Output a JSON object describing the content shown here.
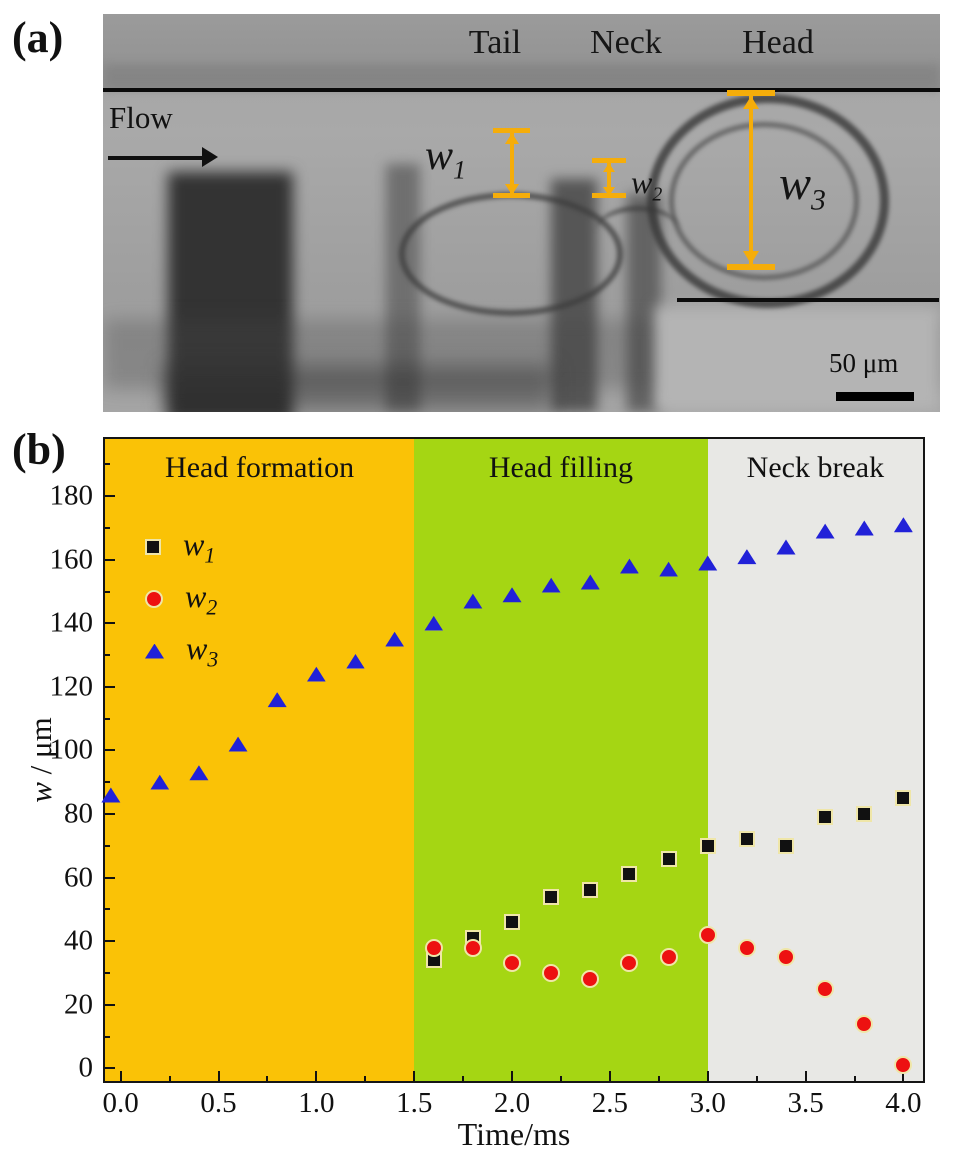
{
  "panel_a": {
    "label": "(a)",
    "region_labels": {
      "tail": "Tail",
      "neck": "Neck",
      "head": "Head"
    },
    "flow_label": "Flow",
    "measurements": [
      {
        "base": "w",
        "sub": "1"
      },
      {
        "base": "w",
        "sub": "2"
      },
      {
        "base": "w",
        "sub": "3"
      }
    ],
    "scale_bar_label": "50 μm",
    "annotation_color": "#F5AD0A"
  },
  "panel_b": {
    "label": "(b)"
  },
  "chart_data": {
    "type": "scatter",
    "title": "",
    "xlabel": "Time/ms",
    "ylabel_italic": "w",
    "ylabel_rest": " / μm",
    "xlim": [
      -0.08,
      4.1
    ],
    "ylim": [
      -4,
      198
    ],
    "grid": false,
    "legend_position": "upper-left",
    "x_ticks": [
      {
        "value": 0.0,
        "label": "0.0"
      },
      {
        "value": 0.5,
        "label": "0.5"
      },
      {
        "value": 1.0,
        "label": "1.0"
      },
      {
        "value": 1.5,
        "label": "1.5"
      },
      {
        "value": 2.0,
        "label": "2.0"
      },
      {
        "value": 2.5,
        "label": "2.5"
      },
      {
        "value": 3.0,
        "label": "3.0"
      },
      {
        "value": 3.5,
        "label": "3.5"
      },
      {
        "value": 4.0,
        "label": "4.0"
      }
    ],
    "x_minor_ticks": [
      0.25,
      0.75,
      1.25,
      1.75,
      2.25,
      2.75,
      3.25,
      3.75
    ],
    "y_ticks": [
      {
        "value": 0,
        "label": "0"
      },
      {
        "value": 20,
        "label": "20"
      },
      {
        "value": 40,
        "label": "40"
      },
      {
        "value": 60,
        "label": "60"
      },
      {
        "value": 80,
        "label": "80"
      },
      {
        "value": 100,
        "label": "100"
      },
      {
        "value": 120,
        "label": "120"
      },
      {
        "value": 140,
        "label": "140"
      },
      {
        "value": 160,
        "label": "160"
      },
      {
        "value": 180,
        "label": "180"
      }
    ],
    "y_minor_ticks": [
      10,
      30,
      50,
      70,
      90,
      110,
      130,
      150,
      170,
      190
    ],
    "regions": [
      {
        "label": "Head formation",
        "start": -0.08,
        "end": 1.5,
        "color": "#FAC206"
      },
      {
        "label": "Head filling",
        "start": 1.5,
        "end": 3.0,
        "color": "#A5D613"
      },
      {
        "label": "Neck break",
        "start": 3.0,
        "end": 4.1,
        "color": "#E8E8E5"
      }
    ],
    "series": [
      {
        "name": "w1",
        "label": "w",
        "sub": "1",
        "marker": "square",
        "color": "#111111",
        "edge": "#EFE6A8",
        "x": [
          1.6,
          1.8,
          2.0,
          2.2,
          2.4,
          2.6,
          2.8,
          3.0,
          3.2,
          3.4,
          3.6,
          3.8,
          4.0
        ],
        "y": [
          34,
          41,
          46,
          54,
          56,
          61,
          66,
          70,
          72,
          70,
          79,
          80,
          85
        ]
      },
      {
        "name": "w2",
        "label": "w",
        "sub": "2",
        "marker": "circle",
        "color": "#ED1111",
        "edge": "#EFE6A8",
        "x": [
          1.6,
          1.8,
          2.0,
          2.2,
          2.4,
          2.6,
          2.8,
          3.0,
          3.2,
          3.4,
          3.6,
          3.8,
          4.0
        ],
        "y": [
          38,
          38,
          33,
          30,
          28,
          33,
          35,
          42,
          38,
          35,
          25,
          14,
          1
        ]
      },
      {
        "name": "w3",
        "label": "w",
        "sub": "3",
        "marker": "triangle",
        "color": "#2121D8",
        "edge": "#EFE6A8",
        "x": [
          -0.05,
          0.2,
          0.4,
          0.6,
          0.8,
          1.0,
          1.2,
          1.4,
          1.6,
          1.8,
          2.0,
          2.2,
          2.4,
          2.6,
          2.8,
          3.0,
          3.2,
          3.4,
          3.6,
          3.8,
          4.0
        ],
        "y": [
          86,
          90,
          93,
          102,
          116,
          124,
          128,
          135,
          140,
          147,
          149,
          152,
          153,
          158,
          157,
          159,
          161,
          164,
          169,
          170,
          171
        ]
      }
    ]
  }
}
